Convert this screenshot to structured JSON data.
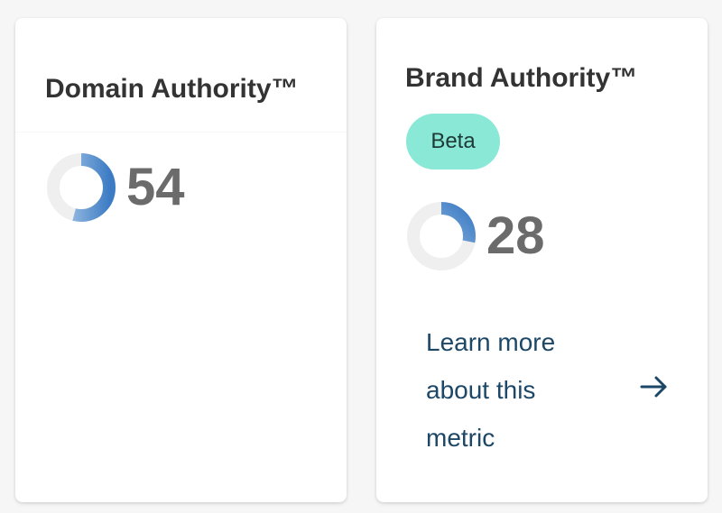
{
  "cards": [
    {
      "title": "Domain Authority™",
      "score": "54",
      "score_value": 54,
      "score_max": 100
    },
    {
      "title": "Brand Authority™",
      "badge": "Beta",
      "score": "28",
      "score_value": 28,
      "score_max": 100,
      "link_text": "Learn more about this metric",
      "link_icon": "arrow-right-icon"
    }
  ],
  "colors": {
    "donut_track": "#efefef",
    "donut_fill": "#4a86c9",
    "badge_bg": "#8ae8d6",
    "link": "#1c4766",
    "score_text": "#6b6b6b"
  }
}
